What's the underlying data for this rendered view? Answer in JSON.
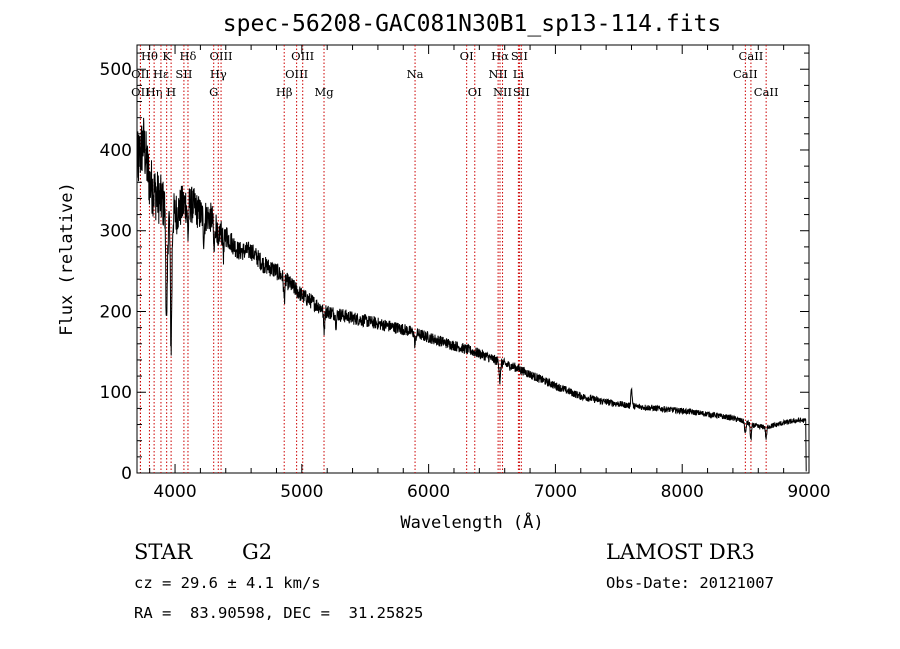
{
  "chart_data": {
    "type": "line",
    "title": "spec-56208-GAC081N30B1_sp13-114.fits",
    "xlabel": "Wavelength (Å)",
    "ylabel": "Flux (relative)",
    "xlim": [
      3700,
      9000
    ],
    "ylim": [
      0,
      530
    ],
    "x_ticks": [
      4000,
      5000,
      6000,
      7000,
      8000,
      9000
    ],
    "y_ticks": [
      0,
      100,
      200,
      300,
      400,
      500
    ],
    "grid": false,
    "continuum": [
      [
        3700,
        380
      ],
      [
        3750,
        410
      ],
      [
        3800,
        360
      ],
      [
        3850,
        345
      ],
      [
        3900,
        335
      ],
      [
        3950,
        320
      ],
      [
        4000,
        320
      ],
      [
        4050,
        330
      ],
      [
        4100,
        335
      ],
      [
        4150,
        330
      ],
      [
        4200,
        320
      ],
      [
        4250,
        318
      ],
      [
        4300,
        315
      ],
      [
        4350,
        300
      ],
      [
        4400,
        295
      ],
      [
        4500,
        275
      ],
      [
        4600,
        275
      ],
      [
        4700,
        258
      ],
      [
        4800,
        250
      ],
      [
        4900,
        235
      ],
      [
        5000,
        220
      ],
      [
        5100,
        210
      ],
      [
        5200,
        200
      ],
      [
        5400,
        192
      ],
      [
        5600,
        185
      ],
      [
        5800,
        178
      ],
      [
        6000,
        168
      ],
      [
        6200,
        158
      ],
      [
        6400,
        148
      ],
      [
        6600,
        135
      ],
      [
        6700,
        130
      ],
      [
        6800,
        122
      ],
      [
        7000,
        108
      ],
      [
        7200,
        95
      ],
      [
        7400,
        88
      ],
      [
        7600,
        83
      ],
      [
        7800,
        80
      ],
      [
        8000,
        77
      ],
      [
        8200,
        73
      ],
      [
        8400,
        68
      ],
      [
        8500,
        63
      ],
      [
        8600,
        57
      ],
      [
        8700,
        58
      ],
      [
        8800,
        62
      ],
      [
        8900,
        65
      ],
      [
        8970,
        65
      ]
    ],
    "features": [
      {
        "x": 3934,
        "depth": 150
      },
      {
        "x": 3969,
        "depth": 160
      },
      {
        "x": 4102,
        "depth": 40
      },
      {
        "x": 4227,
        "depth": 25
      },
      {
        "x": 4308,
        "depth": 40
      },
      {
        "x": 4341,
        "depth": 30
      },
      {
        "x": 4383,
        "depth": 25
      },
      {
        "x": 4861,
        "depth": 25
      },
      {
        "x": 5175,
        "depth": 25
      },
      {
        "x": 5270,
        "depth": 12
      },
      {
        "x": 5893,
        "depth": 15
      },
      {
        "x": 6563,
        "depth": 25
      },
      {
        "x": 7600,
        "depth": -22
      },
      {
        "x": 8498,
        "depth": 15
      },
      {
        "x": 8542,
        "depth": 20
      },
      {
        "x": 8662,
        "depth": 15
      }
    ],
    "noise": [
      {
        "x": 3700,
        "amp": 40
      },
      {
        "x": 4000,
        "amp": 28
      },
      {
        "x": 4500,
        "amp": 12
      },
      {
        "x": 5500,
        "amp": 8
      },
      {
        "x": 6600,
        "amp": 6
      },
      {
        "x": 7500,
        "amp": 4
      },
      {
        "x": 9000,
        "amp": 3
      }
    ],
    "lines": [
      {
        "label": "Hθ",
        "x": 3798,
        "row": 0
      },
      {
        "label": "OII",
        "x": 3727,
        "row": 1
      },
      {
        "label": "OII",
        "x": 3727,
        "row": 2
      },
      {
        "label": "Hη",
        "x": 3835,
        "row": 2
      },
      {
        "label": "Hε",
        "x": 3889,
        "row": 1
      },
      {
        "label": "K",
        "x": 3934,
        "row": 0
      },
      {
        "label": "SII",
        "x": 4070,
        "row": 1
      },
      {
        "label": "H",
        "x": 3969,
        "row": 2
      },
      {
        "label": "Hδ",
        "x": 4102,
        "row": 0
      },
      {
        "label": "OIII",
        "x": 4363,
        "row": 0
      },
      {
        "label": "Hγ",
        "x": 4341,
        "row": 1
      },
      {
        "label": "G",
        "x": 4305,
        "row": 2
      },
      {
        "label": "OIII",
        "x": 5007,
        "row": 0
      },
      {
        "label": "OIII",
        "x": 4959,
        "row": 1
      },
      {
        "label": "Hβ",
        "x": 4861,
        "row": 2
      },
      {
        "label": "Mg",
        "x": 5175,
        "row": 2
      },
      {
        "label": "Na",
        "x": 5893,
        "row": 1
      },
      {
        "label": "OI",
        "x": 6300,
        "row": 0
      },
      {
        "label": "OI",
        "x": 6364,
        "row": 2
      },
      {
        "label": "Hα",
        "x": 6563,
        "row": 0
      },
      {
        "label": "SII",
        "x": 6716,
        "row": 0
      },
      {
        "label": "NII",
        "x": 6548,
        "row": 1
      },
      {
        "label": "Li",
        "x": 6708,
        "row": 1
      },
      {
        "label": "NII",
        "x": 6583,
        "row": 2
      },
      {
        "label": "SII",
        "x": 6731,
        "row": 2
      },
      {
        "label": "CaII",
        "x": 8542,
        "row": 0
      },
      {
        "label": "CaII",
        "x": 8498,
        "row": 1
      },
      {
        "label": "CaII",
        "x": 8662,
        "row": 2
      }
    ]
  },
  "info": {
    "object_type": "STAR",
    "subclass": "G2",
    "survey": "LAMOST DR3",
    "cz": "cz = 29.6 ± 4.1 km/s",
    "obs_date": "Obs-Date: 20121007",
    "coords": "RA =  83.90598, DEC =  31.25825"
  }
}
